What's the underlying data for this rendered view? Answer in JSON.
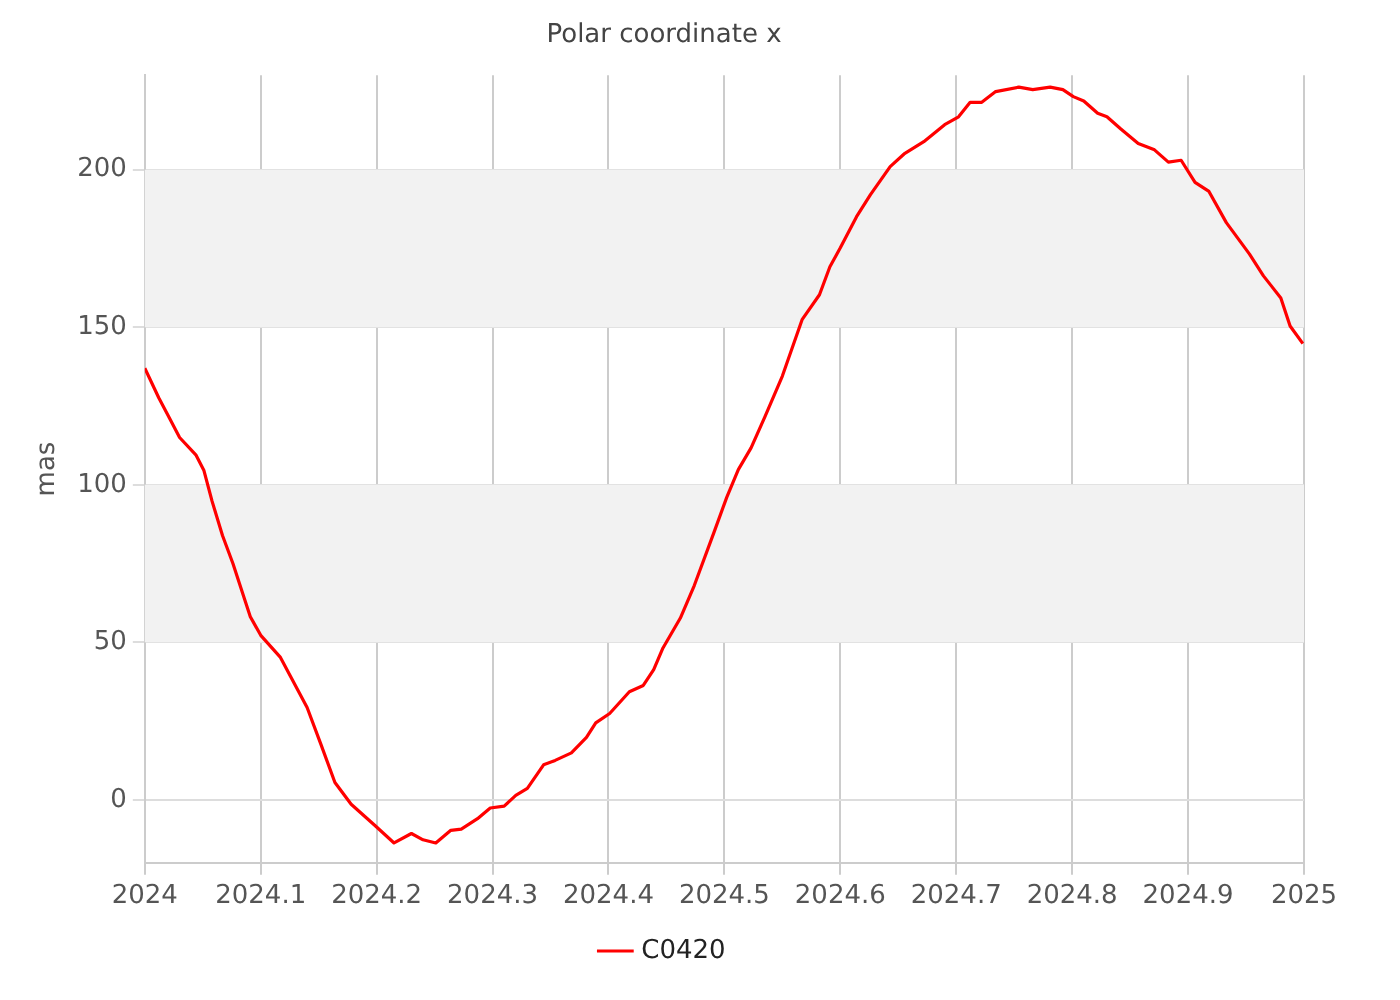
{
  "chart_data": {
    "type": "line",
    "title": "Polar coordinate x",
    "ylabel": "mas",
    "xlim": [
      2024,
      2025
    ],
    "xticks": [
      2024,
      2024.1,
      2024.2,
      2024.3,
      2024.4,
      2024.5,
      2024.6,
      2024.7,
      2024.8,
      2024.9,
      2025
    ],
    "ylim": [
      -20,
      230
    ],
    "yticks": [
      0,
      50,
      100,
      150,
      200
    ],
    "grid": true,
    "legend": "bottom",
    "marker": "none",
    "line_style": "solid",
    "bands": [
      {
        "axis": "y",
        "from": 50,
        "to": 100,
        "color": "#f2f2f2"
      },
      {
        "axis": "y",
        "from": 150,
        "to": 200,
        "color": "#f2f2f2"
      }
    ],
    "series": [
      {
        "name": "C0420",
        "color": "#ff0000",
        "x": [
          2024.0,
          2024.012,
          2024.022,
          2024.03,
          2024.044,
          2024.051,
          2024.058,
          2024.067,
          2024.076,
          2024.091,
          2024.1,
          2024.117,
          2024.14,
          2024.152,
          2024.164,
          2024.178,
          2024.199,
          2024.215,
          2024.23,
          2024.24,
          2024.251,
          2024.264,
          2024.273,
          2024.287,
          2024.298,
          2024.31,
          2024.32,
          2024.33,
          2024.344,
          2024.354,
          2024.368,
          2024.381,
          2024.389,
          2024.401,
          2024.418,
          2024.43,
          2024.439,
          2024.447,
          2024.462,
          2024.474,
          2024.491,
          2024.502,
          2024.512,
          2024.523,
          2024.535,
          2024.55,
          2024.567,
          2024.582,
          2024.591,
          2024.6,
          2024.614,
          2024.626,
          2024.643,
          2024.655,
          2024.672,
          2024.69,
          2024.702,
          2024.712,
          2024.722,
          2024.734,
          2024.754,
          2024.766,
          2024.781,
          2024.792,
          2024.801,
          2024.81,
          2024.822,
          2024.83,
          2024.842,
          2024.857,
          2024.871,
          2024.883,
          2024.894,
          2024.906,
          2024.918,
          2024.933,
          2024.953,
          2024.965,
          2024.98,
          2024.988,
          2024.999
        ],
        "values": [
          137,
          127.6,
          120.6,
          115,
          109.5,
          104.5,
          94.8,
          83.9,
          75,
          58.1,
          52.2,
          45.2,
          29.3,
          17.5,
          5.5,
          -1.4,
          -8.3,
          -13.7,
          -10.7,
          -12.7,
          -13.7,
          -9.7,
          -9.3,
          -6,
          -2.6,
          -2,
          1.4,
          3.6,
          11.1,
          12.5,
          14.9,
          19.8,
          24.4,
          27.4,
          34.3,
          36.3,
          41.3,
          48.2,
          57.7,
          68,
          84.9,
          96,
          104.8,
          111.7,
          121.6,
          134.5,
          152.4,
          160.3,
          169.2,
          175.2,
          185.1,
          192.1,
          201,
          205,
          208.9,
          214.3,
          216.8,
          221.4,
          221.4,
          224.8,
          226.2,
          225.4,
          226.2,
          225.4,
          223.2,
          221.8,
          217.9,
          216.8,
          212.9,
          208.3,
          206.3,
          202.4,
          203,
          196,
          193.1,
          183.2,
          173.2,
          166.3,
          159.3,
          150.4,
          144.8
        ]
      }
    ]
  }
}
